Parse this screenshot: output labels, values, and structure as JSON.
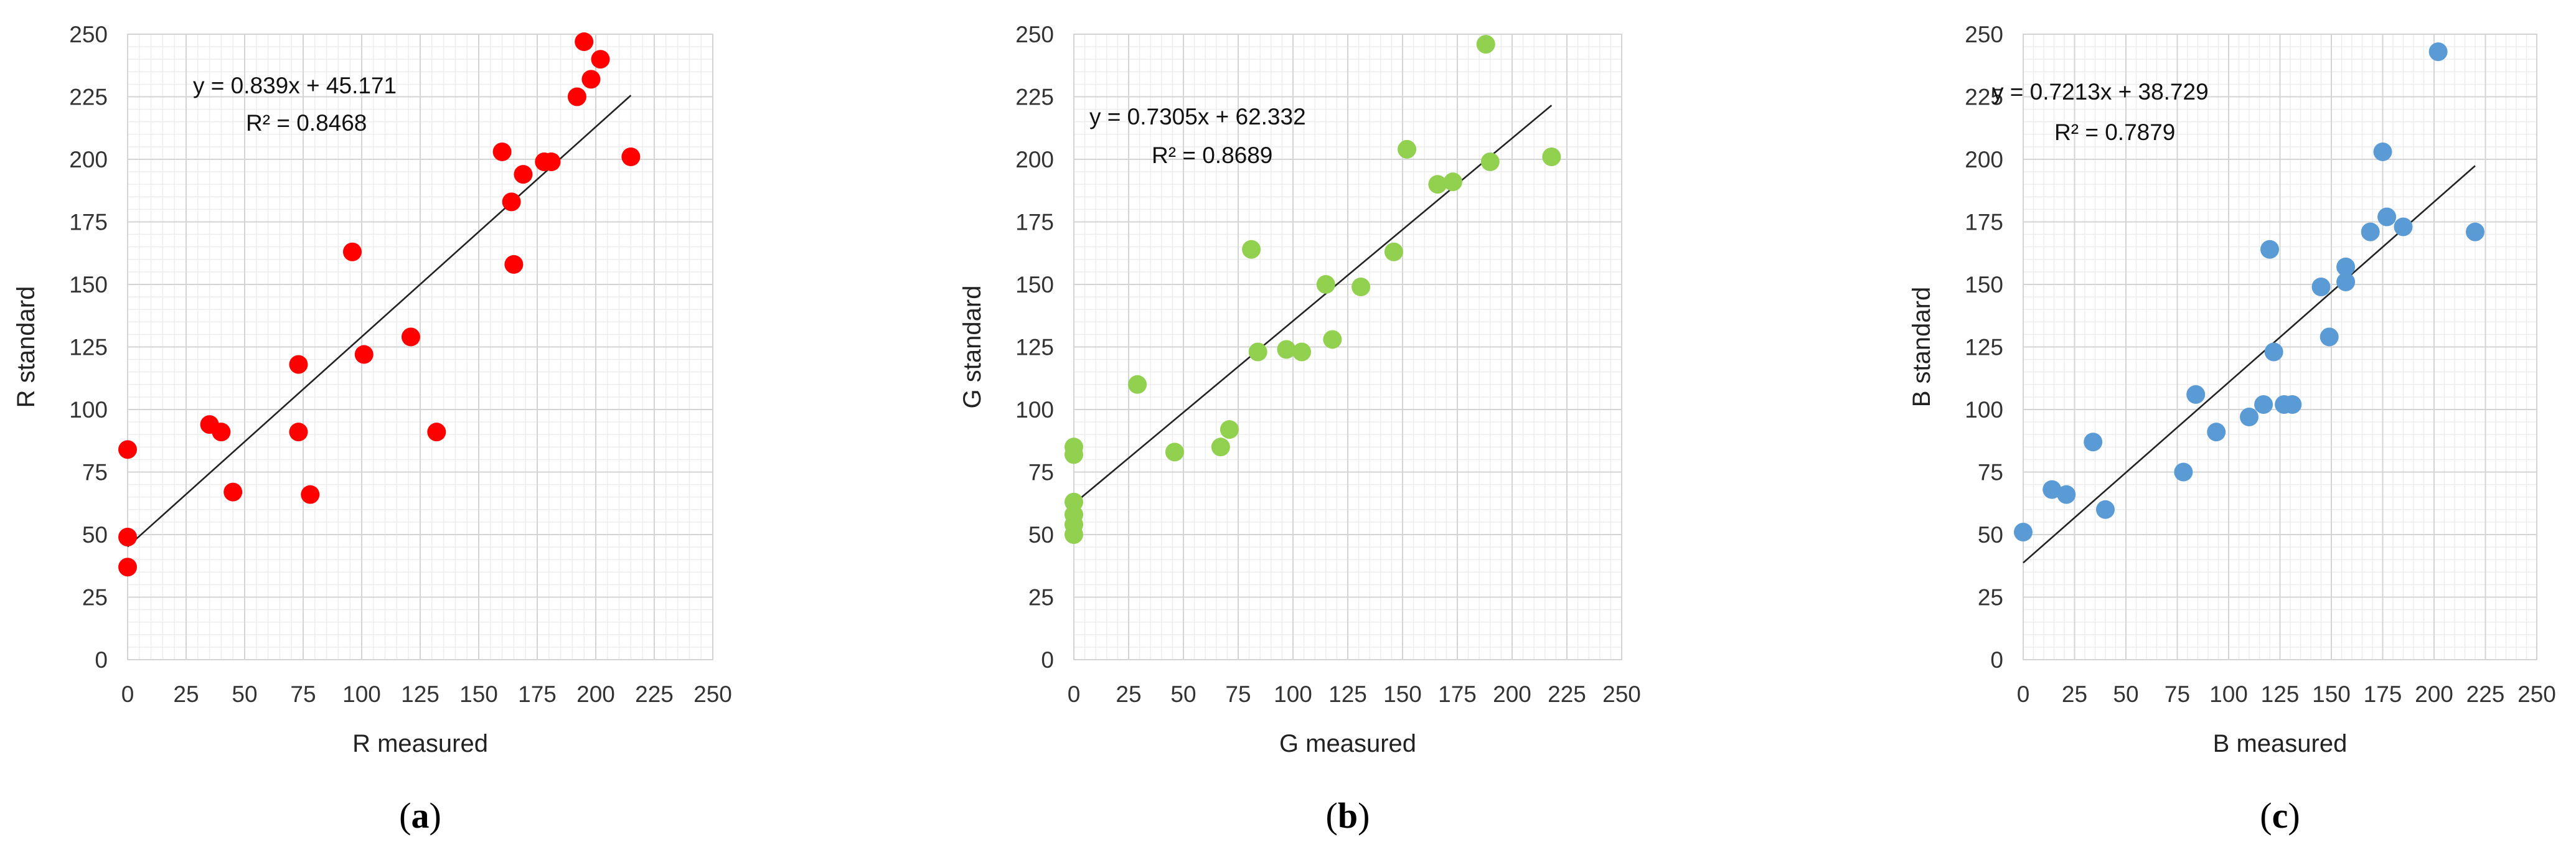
{
  "chart_data": [
    {
      "type": "scatter",
      "panel_label": "a",
      "xlabel": "R measured",
      "ylabel": "R standard",
      "xlim": [
        0,
        250
      ],
      "ylim": [
        0,
        250
      ],
      "xticks": [
        "0",
        "25",
        "50",
        "75",
        "100",
        "125",
        "150",
        "175",
        "200",
        "225",
        "250"
      ],
      "yticks": [
        "0",
        "25",
        "50",
        "75",
        "100",
        "125",
        "150",
        "175",
        "200",
        "225",
        "250"
      ],
      "grid": true,
      "marker_color": "#ff0000",
      "equation": "y = 0.839x + 45.171",
      "r_squared": "R² = 0.8468",
      "trendline": {
        "slope": 0.839,
        "intercept": 45.171,
        "x_range": [
          0,
          215
        ]
      },
      "points": [
        [
          0,
          84
        ],
        [
          0,
          49
        ],
        [
          0,
          37
        ],
        [
          35,
          94
        ],
        [
          40,
          91
        ],
        [
          45,
          67
        ],
        [
          73,
          118
        ],
        [
          73,
          91
        ],
        [
          78,
          66
        ],
        [
          96,
          163
        ],
        [
          101,
          122
        ],
        [
          121,
          129
        ],
        [
          132,
          91
        ],
        [
          160,
          203
        ],
        [
          164,
          183
        ],
        [
          165,
          158
        ],
        [
          169,
          194
        ],
        [
          178,
          199
        ],
        [
          181,
          199
        ],
        [
          192,
          225
        ],
        [
          195,
          247
        ],
        [
          198,
          232
        ],
        [
          202,
          240
        ],
        [
          215,
          201
        ]
      ]
    },
    {
      "type": "scatter",
      "panel_label": "b",
      "xlabel": "G measured",
      "ylabel": "G standard",
      "xlim": [
        0,
        250
      ],
      "ylim": [
        0,
        250
      ],
      "xticks": [
        "0",
        "25",
        "50",
        "75",
        "100",
        "125",
        "150",
        "175",
        "200",
        "225",
        "250"
      ],
      "yticks": [
        "0",
        "25",
        "50",
        "75",
        "100",
        "125",
        "150",
        "175",
        "200",
        "225",
        "250"
      ],
      "grid": true,
      "marker_color": "#92d050",
      "equation": "y = 0.7305x + 62.332",
      "r_squared": "R² = 0.8689",
      "trendline": {
        "slope": 0.7305,
        "intercept": 62.332,
        "x_range": [
          0,
          218
        ]
      },
      "points": [
        [
          0,
          85
        ],
        [
          0,
          82
        ],
        [
          0,
          63
        ],
        [
          0,
          58
        ],
        [
          0,
          54
        ],
        [
          0,
          50
        ],
        [
          29,
          110
        ],
        [
          46,
          83
        ],
        [
          67,
          85
        ],
        [
          71,
          92
        ],
        [
          81,
          164
        ],
        [
          84,
          123
        ],
        [
          97,
          124
        ],
        [
          104,
          123
        ],
        [
          115,
          150
        ],
        [
          118,
          128
        ],
        [
          131,
          149
        ],
        [
          146,
          163
        ],
        [
          152,
          204
        ],
        [
          166,
          190
        ],
        [
          173,
          191
        ],
        [
          188,
          246
        ],
        [
          190,
          199
        ],
        [
          218,
          201
        ]
      ]
    },
    {
      "type": "scatter",
      "panel_label": "c",
      "xlabel": "B measured",
      "ylabel": "B standard",
      "xlim": [
        0,
        250
      ],
      "ylim": [
        0,
        250
      ],
      "xticks": [
        "0",
        "25",
        "50",
        "75",
        "100",
        "125",
        "150",
        "175",
        "200",
        "225",
        "250"
      ],
      "yticks": [
        "0",
        "25",
        "50",
        "75",
        "100",
        "125",
        "150",
        "175",
        "200",
        "225",
        "250"
      ],
      "grid": true,
      "marker_color": "#5b9bd5",
      "equation": "y = 0.7213x + 38.729",
      "r_squared": "R² = 0.7879",
      "trendline": {
        "slope": 0.7213,
        "intercept": 38.729,
        "x_range": [
          0,
          220
        ]
      },
      "points": [
        [
          0,
          51
        ],
        [
          14,
          68
        ],
        [
          21,
          66
        ],
        [
          34,
          87
        ],
        [
          40,
          60
        ],
        [
          78,
          75
        ],
        [
          84,
          106
        ],
        [
          94,
          91
        ],
        [
          110,
          97
        ],
        [
          117,
          102
        ],
        [
          120,
          164
        ],
        [
          122,
          123
        ],
        [
          127,
          102
        ],
        [
          131,
          102
        ],
        [
          145,
          149
        ],
        [
          149,
          129
        ],
        [
          157,
          157
        ],
        [
          157,
          151
        ],
        [
          169,
          171
        ],
        [
          175,
          203
        ],
        [
          177,
          177
        ],
        [
          185,
          173
        ],
        [
          202,
          243
        ],
        [
          220,
          171
        ]
      ]
    }
  ]
}
